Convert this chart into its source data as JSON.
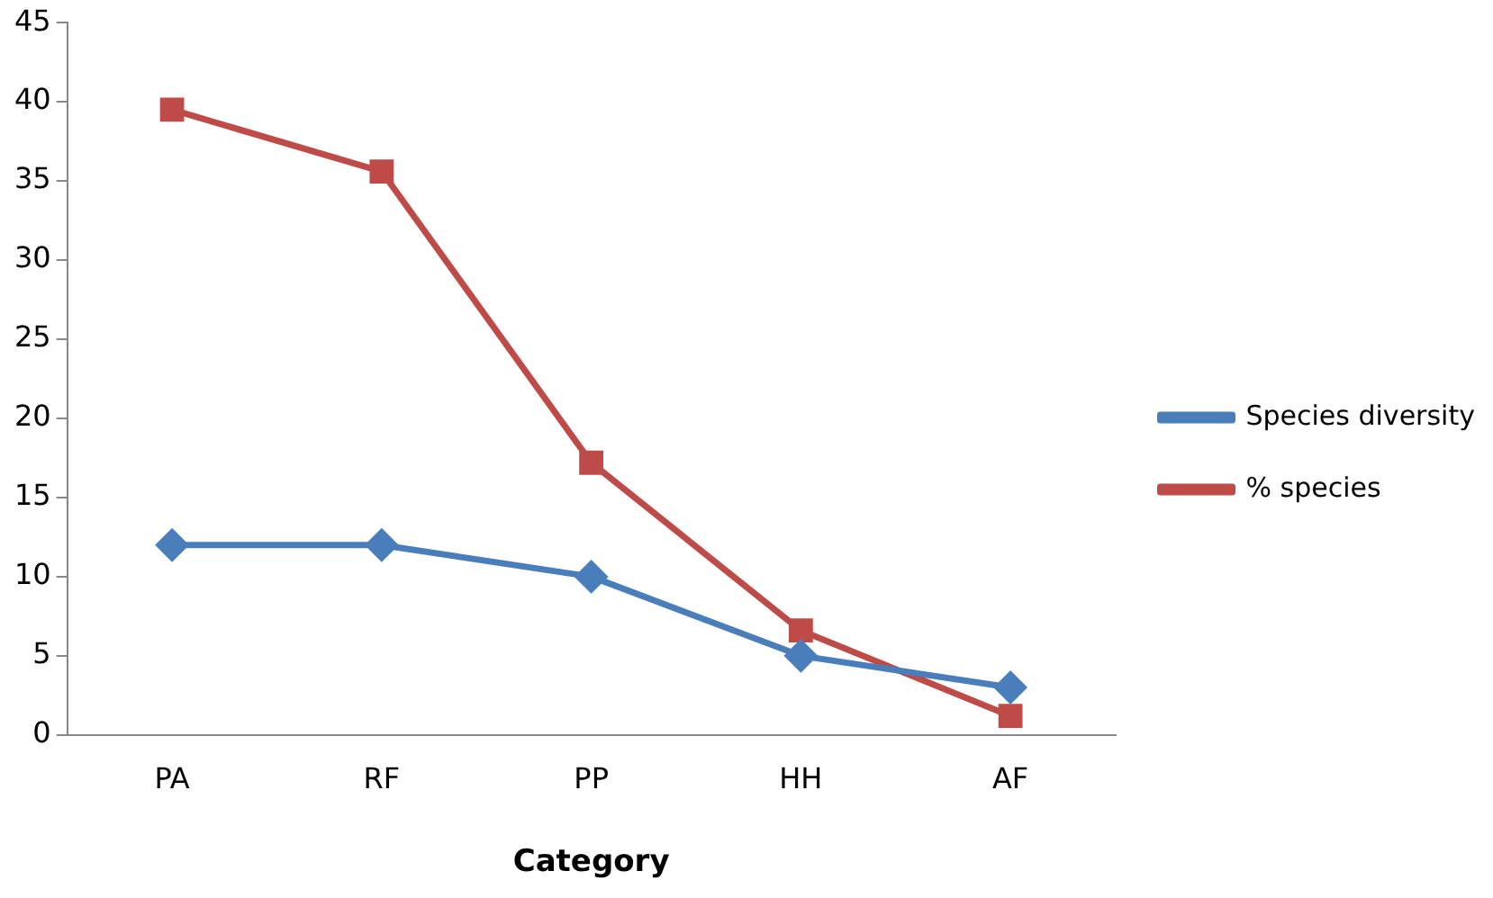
{
  "chart_data": {
    "type": "line",
    "xlabel": "Category",
    "categories": [
      "PA",
      "RF",
      "PP",
      "HH",
      "AF"
    ],
    "series": [
      {
        "name": "Species diversity",
        "color": "#4a7ebb",
        "marker": "diamond",
        "values": [
          12,
          12,
          10,
          5,
          3
        ]
      },
      {
        "name": "% species",
        "color": "#be4b48",
        "marker": "square",
        "values": [
          39.5,
          35.6,
          17.2,
          6.6,
          1.2
        ]
      }
    ],
    "ylim": [
      0,
      45
    ],
    "yticks": [
      0,
      5,
      10,
      15,
      20,
      25,
      30,
      35,
      40,
      45
    ],
    "grid": false,
    "legend": "right",
    "line_style": "solid"
  }
}
